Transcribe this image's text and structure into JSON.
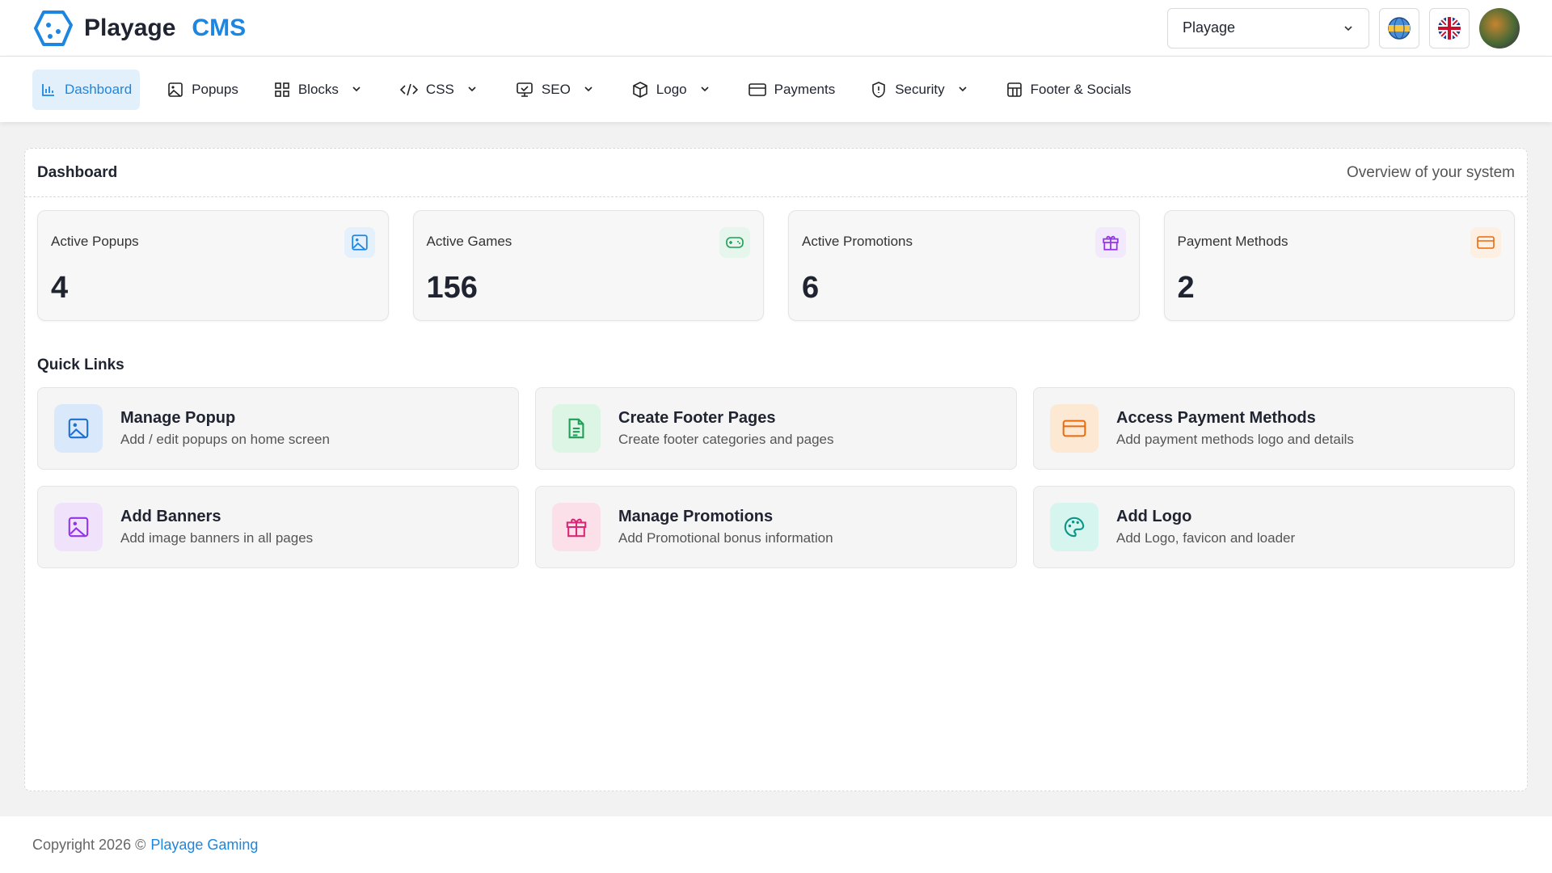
{
  "header": {
    "brand": "Playage",
    "brand_suffix": "CMS",
    "site_select": "Playage"
  },
  "nav": [
    "Dashboard",
    "Popups",
    "Blocks",
    "CSS",
    "SEO",
    "Logo",
    "Payments",
    "Security",
    "Footer & Socials"
  ],
  "dashboard": {
    "title": "Dashboard",
    "subtitle": "Overview of your system",
    "stats": [
      {
        "label": "Active Popups",
        "value": "4"
      },
      {
        "label": "Active Games",
        "value": "156"
      },
      {
        "label": "Active Promotions",
        "value": "6"
      },
      {
        "label": "Payment Methods",
        "value": "2"
      }
    ],
    "quick_links_title": "Quick Links",
    "quick_links": [
      {
        "title": "Manage Popup",
        "description": "Add / edit popups on home screen"
      },
      {
        "title": "Create Footer Pages",
        "description": "Create footer categories and pages"
      },
      {
        "title": "Access Payment Methods",
        "description": "Add payment methods logo and details"
      },
      {
        "title": "Add Banners",
        "description": "Add image banners in all pages"
      },
      {
        "title": "Manage Promotions",
        "description": "Add Promotional bonus information"
      },
      {
        "title": "Add Logo",
        "description": "Add Logo, favicon and loader"
      }
    ]
  },
  "footer": {
    "copyright": "Copyright 2026 ©",
    "link": "Playage Gaming"
  }
}
